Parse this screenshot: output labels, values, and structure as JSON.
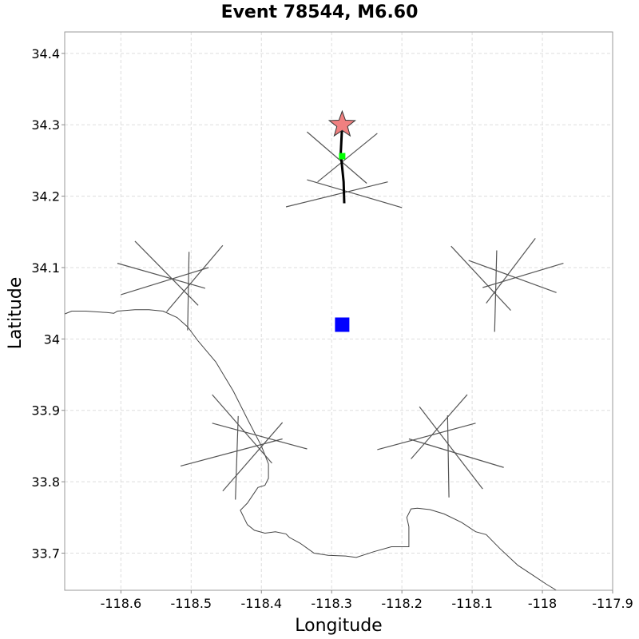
{
  "title": "Event 78544, M6.60",
  "chart_data": {
    "type": "map",
    "xlabel": "Longitude",
    "ylabel": "Latitude",
    "xlim": [
      -118.68,
      -117.9
    ],
    "ylim": [
      33.648,
      34.43
    ],
    "x_ticks": [
      -118.6,
      -118.5,
      -118.4,
      -118.3,
      -118.2,
      -118.1,
      -118.0,
      -117.9
    ],
    "x_tick_labels": [
      "-118.6",
      "-118.5",
      "-118.4",
      "-118.3",
      "-118.2",
      "-118.1",
      "-118",
      "-117.9"
    ],
    "y_ticks": [
      33.7,
      33.8,
      33.9,
      34.0,
      34.1,
      34.2,
      34.3,
      34.4
    ],
    "y_tick_labels": [
      "33.7",
      "33.8",
      "33.9",
      "34",
      "34.1",
      "34.2",
      "34.3",
      "34.4"
    ],
    "grid": true,
    "epicenter": {
      "lon": -118.285,
      "lat": 34.3,
      "marker": "star",
      "color": "#f08080"
    },
    "hypocenter_projection": {
      "lon": -118.285,
      "lat": 34.256,
      "marker": "square",
      "color": "#00ff00"
    },
    "station": {
      "lon": -118.285,
      "lat": 34.02,
      "marker": "square",
      "color": "#0000ff"
    },
    "rupture_trace": [
      [
        -118.285,
        34.3
      ],
      [
        -118.287,
        34.26
      ],
      [
        -118.283,
        34.22
      ],
      [
        -118.282,
        34.19
      ]
    ],
    "coastline": [
      [
        -118.68,
        34.035
      ],
      [
        -118.67,
        34.039
      ],
      [
        -118.65,
        34.039
      ],
      [
        -118.62,
        34.037
      ],
      [
        -118.61,
        34.036
      ],
      [
        -118.605,
        34.039
      ],
      [
        -118.58,
        34.041
      ],
      [
        -118.56,
        34.041
      ],
      [
        -118.54,
        34.039
      ],
      [
        -118.52,
        34.03
      ],
      [
        -118.505,
        34.017
      ],
      [
        -118.49,
        33.997
      ],
      [
        -118.465,
        33.968
      ],
      [
        -118.44,
        33.927
      ],
      [
        -118.42,
        33.888
      ],
      [
        -118.4,
        33.85
      ],
      [
        -118.39,
        33.825
      ],
      [
        -118.39,
        33.805
      ],
      [
        -118.395,
        33.795
      ],
      [
        -118.405,
        33.792
      ],
      [
        -118.42,
        33.77
      ],
      [
        -118.43,
        33.76
      ],
      [
        -118.42,
        33.74
      ],
      [
        -118.41,
        33.732
      ],
      [
        -118.395,
        33.728
      ],
      [
        -118.38,
        33.73
      ],
      [
        -118.365,
        33.727
      ],
      [
        -118.36,
        33.722
      ],
      [
        -118.345,
        33.714
      ],
      [
        -118.325,
        33.7
      ],
      [
        -118.305,
        33.697
      ],
      [
        -118.28,
        33.696
      ],
      [
        -118.265,
        33.694
      ],
      [
        -118.24,
        33.702
      ],
      [
        -118.215,
        33.709
      ],
      [
        -118.19,
        33.709
      ],
      [
        -118.19,
        33.737
      ],
      [
        -118.193,
        33.75
      ],
      [
        -118.187,
        33.762
      ],
      [
        -118.178,
        33.763
      ],
      [
        -118.16,
        33.761
      ],
      [
        -118.14,
        33.755
      ],
      [
        -118.115,
        33.743
      ],
      [
        -118.095,
        33.73
      ],
      [
        -118.08,
        33.726
      ],
      [
        -118.06,
        33.706
      ],
      [
        -118.035,
        33.683
      ],
      [
        -118.015,
        33.67
      ],
      [
        -117.995,
        33.657
      ],
      [
        -117.98,
        33.648
      ]
    ],
    "fault_clusters": [
      {
        "segments": [
          [
            [
              -118.335,
              34.29
            ],
            [
              -118.25,
              34.218
            ]
          ],
          [
            [
              -118.235,
              34.288
            ],
            [
              -118.32,
              34.22
            ]
          ],
          [
            [
              -118.365,
              34.185
            ],
            [
              -118.22,
              34.22
            ]
          ],
          [
            [
              -118.335,
              34.223
            ],
            [
              -118.2,
              34.184
            ]
          ]
        ]
      },
      {
        "segments": [
          [
            [
              -118.58,
              34.137
            ],
            [
              -118.49,
              34.047
            ]
          ],
          [
            [
              -118.455,
              34.131
            ],
            [
              -118.535,
              34.038
            ]
          ],
          [
            [
              -118.6,
              34.062
            ],
            [
              -118.475,
              34.1
            ]
          ],
          [
            [
              -118.605,
              34.106
            ],
            [
              -118.48,
              34.071
            ]
          ],
          [
            [
              -118.503,
              34.122
            ],
            [
              -118.505,
              34.012
            ]
          ]
        ]
      },
      {
        "segments": [
          [
            [
              -118.13,
              34.13
            ],
            [
              -118.045,
              34.04
            ]
          ],
          [
            [
              -118.01,
              34.141
            ],
            [
              -118.08,
              34.05
            ]
          ],
          [
            [
              -118.085,
              34.072
            ],
            [
              -117.97,
              34.106
            ]
          ],
          [
            [
              -118.105,
              34.11
            ],
            [
              -117.98,
              34.065
            ]
          ],
          [
            [
              -118.065,
              34.124
            ],
            [
              -118.068,
              34.01
            ]
          ]
        ]
      },
      {
        "segments": [
          [
            [
              -118.47,
              33.922
            ],
            [
              -118.385,
              33.826
            ]
          ],
          [
            [
              -118.37,
              33.883
            ],
            [
              -118.455,
              33.787
            ]
          ],
          [
            [
              -118.515,
              33.822
            ],
            [
              -118.37,
              33.86
            ]
          ],
          [
            [
              -118.47,
              33.882
            ],
            [
              -118.335,
              33.846
            ]
          ],
          [
            [
              -118.433,
              33.892
            ],
            [
              -118.437,
              33.775
            ]
          ]
        ]
      },
      {
        "segments": [
          [
            [
              -118.175,
              33.905
            ],
            [
              -118.085,
              33.79
            ]
          ],
          [
            [
              -118.107,
              33.922
            ],
            [
              -118.187,
              33.832
            ]
          ],
          [
            [
              -118.235,
              33.845
            ],
            [
              -118.095,
              33.882
            ]
          ],
          [
            [
              -118.19,
              33.86
            ],
            [
              -118.055,
              33.82
            ]
          ],
          [
            [
              -118.135,
              33.893
            ],
            [
              -118.133,
              33.778
            ]
          ]
        ]
      }
    ]
  }
}
